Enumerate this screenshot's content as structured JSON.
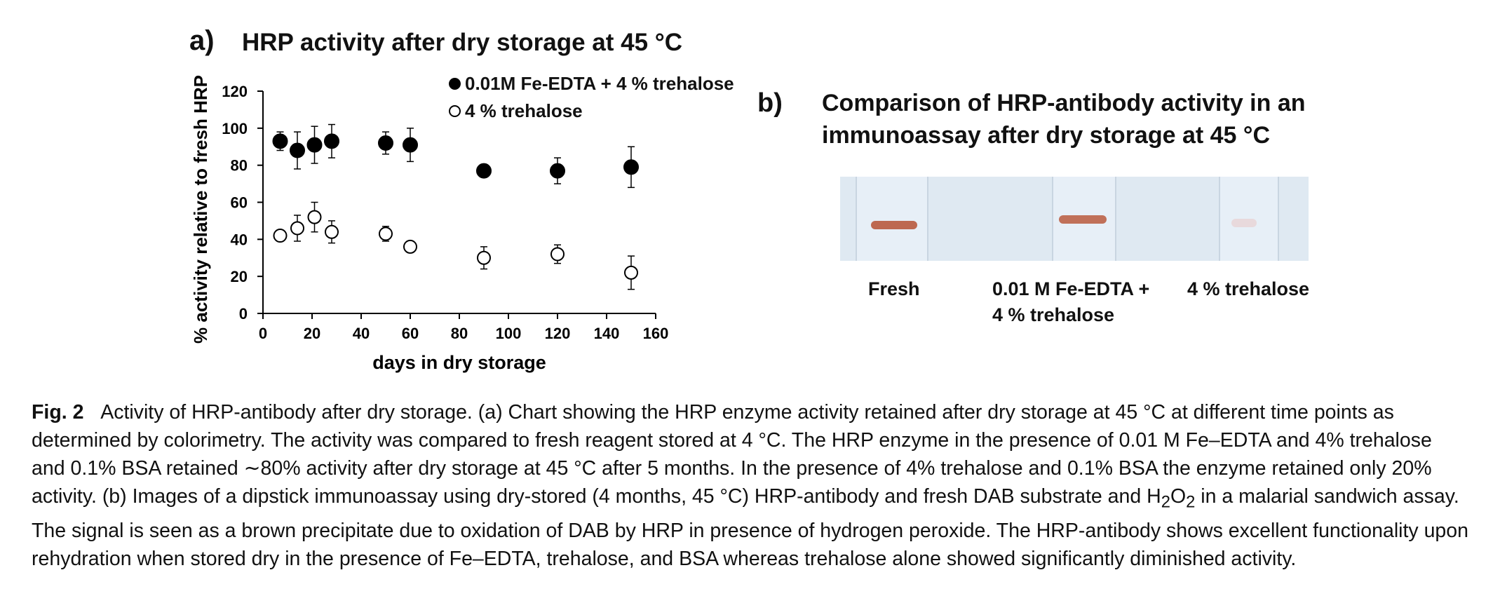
{
  "panel_a": {
    "label": "a)",
    "title": "HRP activity after dry storage at 45 °C"
  },
  "panel_b": {
    "label": "b)",
    "title_line1": "Comparison of HRP-antibody activity in an",
    "title_line2": "immunoassay after dry storage at 45 °C",
    "strips": [
      {
        "label_line1": "Fresh",
        "label_line2": "",
        "band": "strong"
      },
      {
        "label_line1": "0.01 M Fe-EDTA +",
        "label_line2": "4 % trehalose",
        "band": "strong"
      },
      {
        "label_line1": "4 % trehalose",
        "label_line2": "",
        "band": "faint"
      }
    ],
    "colors": {
      "band_strong": "#b8593d",
      "band_faint": "#e8d6d8",
      "strip_bg": "#e7eff7"
    }
  },
  "chart_data": {
    "type": "scatter",
    "title": "HRP activity after dry storage at 45 °C",
    "xlabel": "days in dry storage",
    "ylabel": "% activity relative to fresh HRP",
    "xlim": [
      0,
      160
    ],
    "ylim": [
      0,
      120
    ],
    "x_ticks": [
      0,
      20,
      40,
      60,
      80,
      100,
      120,
      140,
      160
    ],
    "y_ticks": [
      0,
      20,
      40,
      60,
      80,
      100,
      120
    ],
    "grid": false,
    "legend_position": "top-right",
    "series": [
      {
        "name": "0.01M Fe-EDTA + 4 % trehalose",
        "marker": "filled-circle",
        "points": [
          {
            "x": 7,
            "y": 93,
            "err": 5
          },
          {
            "x": 14,
            "y": 88,
            "err": 10
          },
          {
            "x": 21,
            "y": 91,
            "err": 10
          },
          {
            "x": 28,
            "y": 93,
            "err": 9
          },
          {
            "x": 50,
            "y": 92,
            "err": 6
          },
          {
            "x": 60,
            "y": 91,
            "err": 9
          },
          {
            "x": 90,
            "y": 77,
            "err": 0
          },
          {
            "x": 120,
            "y": 77,
            "err": 7
          },
          {
            "x": 150,
            "y": 79,
            "err": 11
          }
        ]
      },
      {
        "name": "4 % trehalose",
        "marker": "open-circle",
        "points": [
          {
            "x": 7,
            "y": 42,
            "err": 2
          },
          {
            "x": 14,
            "y": 46,
            "err": 7
          },
          {
            "x": 21,
            "y": 52,
            "err": 8
          },
          {
            "x": 28,
            "y": 44,
            "err": 6
          },
          {
            "x": 50,
            "y": 43,
            "err": 4
          },
          {
            "x": 60,
            "y": 36,
            "err": 3
          },
          {
            "x": 90,
            "y": 30,
            "err": 6
          },
          {
            "x": 120,
            "y": 32,
            "err": 5
          },
          {
            "x": 150,
            "y": 22,
            "err": 9
          }
        ]
      }
    ]
  },
  "caption": {
    "fig_label": "Fig. 2",
    "seg1": "Activity of HRP-antibody after dry storage. (a) Chart showing the HRP enzyme activity retained after dry storage at 45 °C at different time points as determined by colorimetry. The activity was compared to fresh reagent stored at 4 °C. The HRP enzyme in the presence of 0.01 M Fe–EDTA and 4% trehalose and 0.1% BSA retained ∼80% activity after dry storage at 45 °C after 5 months. In the presence of 4% trehalose and 0.1% BSA the enzyme retained only 20% activity. (b) Images of a dipstick immunoassay using dry-stored (4 months, 45 °C) HRP-antibody and fresh DAB substrate and H",
    "sub1": "2",
    "mid": "O",
    "sub2": "2",
    "seg2": " in a malarial sandwich assay. The signal is seen as a brown precipitate due to oxidation of DAB by HRP in presence of hydrogen peroxide. The HRP-antibody shows excellent functionality upon rehydration when stored dry in the presence of Fe–EDTA, trehalose, and BSA whereas trehalose alone showed significantly diminished activity."
  }
}
